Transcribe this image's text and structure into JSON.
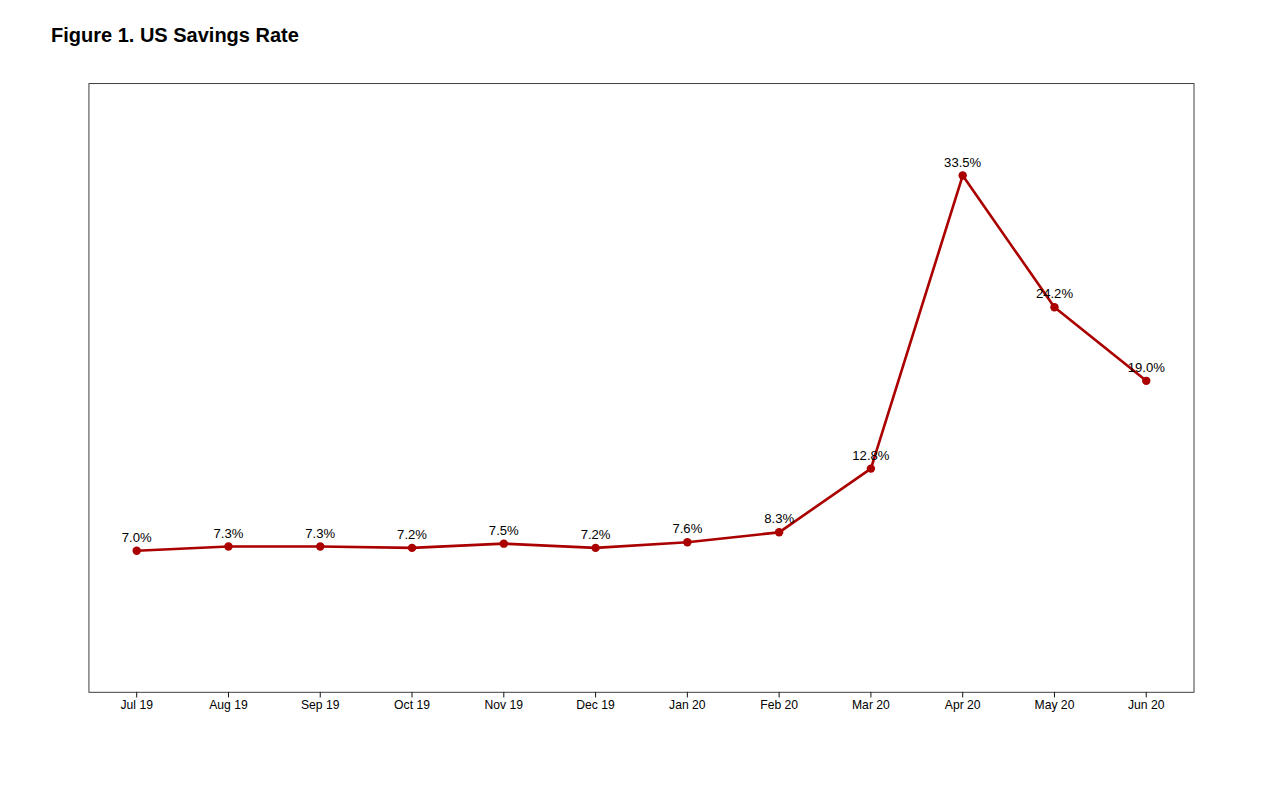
{
  "chart_data": {
    "type": "line",
    "title": "Figure 1. US Savings Rate",
    "categories": [
      "Jul 19",
      "Aug 19",
      "Sep 19",
      "Oct 19",
      "Nov 19",
      "Dec 19",
      "Jan 20",
      "Feb 20",
      "Mar 20",
      "Apr 20",
      "May 20",
      "Jun 20"
    ],
    "values": [
      7.0,
      7.3,
      7.3,
      7.2,
      7.5,
      7.2,
      7.6,
      8.3,
      12.8,
      33.5,
      24.2,
      19.0
    ],
    "value_labels": [
      "7.0%",
      "7.3%",
      "7.3%",
      "7.2%",
      "7.5%",
      "7.2%",
      "7.6%",
      "8.3%",
      "12.8%",
      "33.5%",
      "24.2%",
      "19.0%"
    ],
    "color": "#AA0000",
    "ylim": [
      -3,
      40
    ],
    "grid": false,
    "data_labels": true,
    "tick_labels": "x",
    "marker": "circle"
  }
}
